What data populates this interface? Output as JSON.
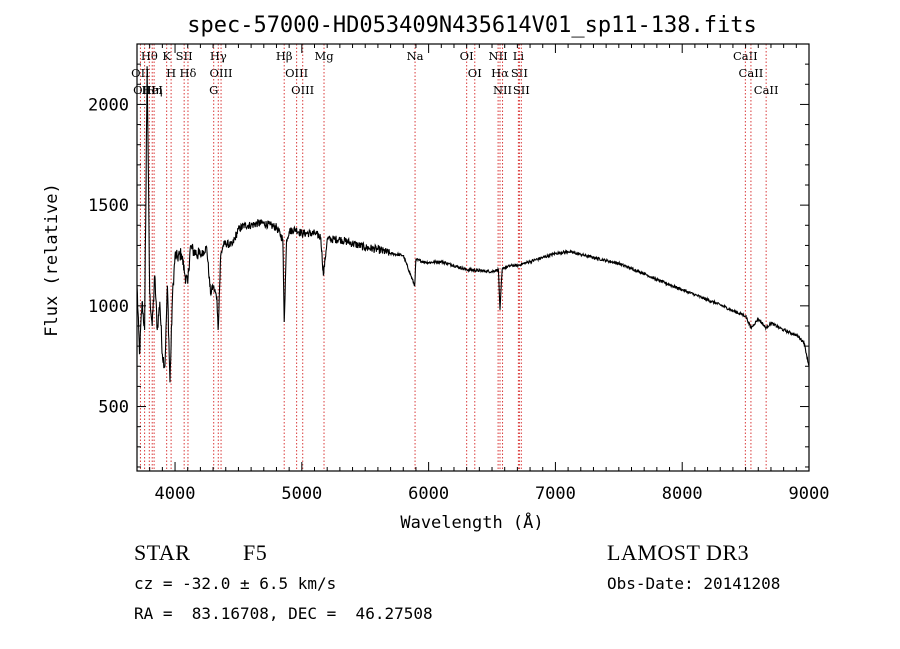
{
  "chart_data": {
    "type": "line",
    "title": "spec-57000-HD053409N435614V01_sp11-138.fits",
    "xlabel": "Wavelength (Å)",
    "ylabel": "Flux (relative)",
    "xlim": [
      3700,
      9000
    ],
    "ylim": [
      180,
      2300
    ],
    "xticks": [
      4000,
      5000,
      6000,
      7000,
      8000,
      9000
    ],
    "yticks": [
      500,
      1000,
      1500,
      2000
    ],
    "grid": false,
    "spectrum": {
      "x": [
        3700,
        3720,
        3740,
        3760,
        3780,
        3800,
        3820,
        3840,
        3860,
        3880,
        3900,
        3920,
        3940,
        3960,
        3980,
        4000,
        4020,
        4050,
        4080,
        4100,
        4120,
        4150,
        4200,
        4250,
        4280,
        4300,
        4330,
        4340,
        4360,
        4380,
        4400,
        4450,
        4500,
        4550,
        4600,
        4650,
        4700,
        4750,
        4800,
        4850,
        4861,
        4880,
        4900,
        4950,
        5000,
        5050,
        5100,
        5150,
        5170,
        5200,
        5300,
        5400,
        5500,
        5600,
        5700,
        5800,
        5890,
        5900,
        5950,
        6000,
        6100,
        6200,
        6300,
        6400,
        6500,
        6550,
        6563,
        6580,
        6600,
        6650,
        6700,
        6800,
        6900,
        7000,
        7100,
        7200,
        7300,
        7400,
        7500,
        7600,
        7700,
        7800,
        7900,
        8000,
        8100,
        8200,
        8300,
        8400,
        8500,
        8542,
        8600,
        8662,
        8700,
        8800,
        8900,
        8960,
        9000
      ],
      "y": [
        1100,
        760,
        1020,
        880,
        2190,
        1060,
        900,
        1150,
        880,
        1020,
        760,
        700,
        1100,
        620,
        1050,
        1250,
        1240,
        1260,
        1150,
        1110,
        1290,
        1270,
        1250,
        1290,
        1060,
        1100,
        1040,
        880,
        1250,
        1300,
        1310,
        1300,
        1380,
        1400,
        1400,
        1410,
        1410,
        1400,
        1390,
        1330,
        920,
        1330,
        1370,
        1380,
        1360,
        1360,
        1360,
        1340,
        1150,
        1330,
        1330,
        1310,
        1290,
        1280,
        1260,
        1250,
        1100,
        1230,
        1220,
        1215,
        1220,
        1200,
        1180,
        1175,
        1170,
        1180,
        980,
        1180,
        1190,
        1200,
        1200,
        1220,
        1240,
        1260,
        1270,
        1255,
        1240,
        1225,
        1210,
        1185,
        1160,
        1130,
        1105,
        1080,
        1055,
        1030,
        1005,
        975,
        950,
        890,
        935,
        890,
        915,
        880,
        855,
        820,
        700
      ]
    },
    "lines": [
      {
        "name": "Hθ",
        "wave": 3797
      },
      {
        "name": "OII",
        "wave": 3727
      },
      {
        "name": "OIII",
        "wave": 3760
      },
      {
        "name": "HeI",
        "wave": 3820
      },
      {
        "name": "Hη",
        "wave": 3835
      },
      {
        "name": "K",
        "wave": 3934
      },
      {
        "name": "H",
        "wave": 3969
      },
      {
        "name": "SII",
        "wave": 4072
      },
      {
        "name": "Hδ",
        "wave": 4102
      },
      {
        "name": "Hγ",
        "wave": 4341
      },
      {
        "name": "OIII",
        "wave": 4363
      },
      {
        "name": "G",
        "wave": 4305
      },
      {
        "name": "Hβ",
        "wave": 4861
      },
      {
        "name": "OIII",
        "wave": 4959
      },
      {
        "name": "OIII",
        "wave": 5007
      },
      {
        "name": "Mg",
        "wave": 5175
      },
      {
        "name": "Na",
        "wave": 5893
      },
      {
        "name": "OI",
        "wave": 6300
      },
      {
        "name": "OI",
        "wave": 6364
      },
      {
        "name": "NII",
        "wave": 6548
      },
      {
        "name": "Hα",
        "wave": 6563
      },
      {
        "name": "NII",
        "wave": 6583
      },
      {
        "name": "Li",
        "wave": 6708
      },
      {
        "name": "SII",
        "wave": 6716
      },
      {
        "name": "SII",
        "wave": 6731
      },
      {
        "name": "CaII",
        "wave": 8498
      },
      {
        "name": "CaII",
        "wave": 8542
      },
      {
        "name": "CaII",
        "wave": 8662
      }
    ],
    "line_color": "#d93a3a"
  },
  "info": {
    "class_label": "STAR",
    "subclass": "F5",
    "survey": "LAMOST DR3",
    "cz": "cz = -32.0 ± 6.5 km/s",
    "obs_date": "Obs-Date: 20141208",
    "coords": "RA =  83.16708, DEC =  46.27508"
  }
}
